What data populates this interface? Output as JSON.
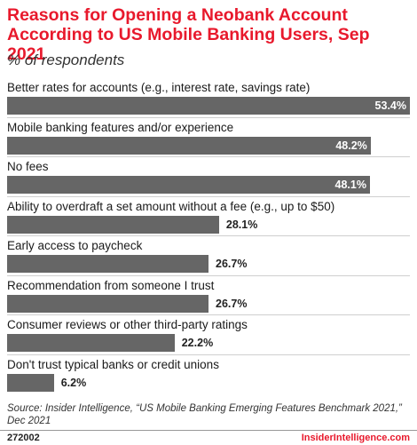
{
  "chart_data": {
    "type": "bar",
    "orientation": "horizontal",
    "title": "Reasons for Opening a Neobank Account According to US Mobile Banking Users, Sep 2021",
    "subtitle": "% of respondents",
    "categories": [
      "Better rates for accounts (e.g., interest rate, savings rate)",
      "Mobile banking features and/or experience",
      "No fees",
      "Ability to overdraft a set amount without a fee (e.g., up to $50)",
      "Early access to paycheck",
      "Recommendation from someone I trust",
      "Consumer reviews or other third-party ratings",
      "Don't trust typical banks or credit unions"
    ],
    "values": [
      53.4,
      48.2,
      48.1,
      28.1,
      26.7,
      26.7,
      22.2,
      6.2
    ],
    "value_labels": [
      "53.4%",
      "48.2%",
      "48.1%",
      "28.1%",
      "26.7%",
      "26.7%",
      "22.2%",
      "6.2%"
    ],
    "xlim": [
      0,
      53.4
    ],
    "bar_color": "#666666",
    "grid": false,
    "legend": "none"
  },
  "source": "Source: Insider Intelligence, “US Mobile Banking Emerging Features Benchmark 2021,” Dec 2021",
  "footer": {
    "chart_id": "272002",
    "brand": "InsiderIntelligence.com"
  },
  "colors": {
    "title": "#e8192c",
    "brand": "#e8192c",
    "bar": "#666666"
  }
}
